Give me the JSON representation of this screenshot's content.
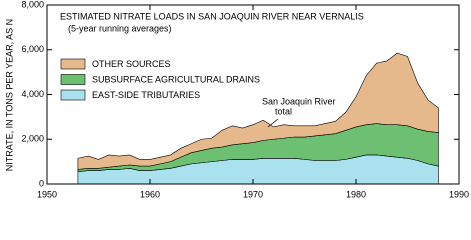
{
  "chart_data": {
    "type": "stacked_area",
    "title": "ESTIMATED NITRATE LOADS IN SAN JOAQUIN RIVER NEAR VERNALIS",
    "subtitle": "(5-year running averages)",
    "y_label": "NITRATE, IN TONS PER YEAR, AS N",
    "annotation": [
      "San Joaquin River",
      "total"
    ],
    "x": [
      1953,
      1954,
      1955,
      1956,
      1957,
      1958,
      1959,
      1960,
      1961,
      1962,
      1963,
      1964,
      1965,
      1966,
      1967,
      1968,
      1969,
      1970,
      1971,
      1972,
      1973,
      1974,
      1975,
      1976,
      1977,
      1978,
      1979,
      1980,
      1981,
      1982,
      1983,
      1984,
      1985,
      1986,
      1987,
      1988
    ],
    "series": [
      {
        "name": "EAST-SIDE TRIBUTARIES",
        "color": "#a9e2ee",
        "values": [
          550,
          600,
          600,
          650,
          650,
          700,
          600,
          600,
          650,
          700,
          800,
          900,
          950,
          1000,
          1050,
          1100,
          1100,
          1100,
          1150,
          1150,
          1150,
          1150,
          1100,
          1050,
          1050,
          1050,
          1100,
          1200,
          1300,
          1300,
          1250,
          1200,
          1150,
          1050,
          900,
          800
        ]
      },
      {
        "name": "SUBSURFACE AGRICULTURAL DRAINS",
        "color": "#6dbf72",
        "values": [
          100,
          100,
          100,
          100,
          150,
          150,
          200,
          200,
          250,
          300,
          400,
          500,
          550,
          600,
          600,
          650,
          700,
          750,
          800,
          850,
          900,
          950,
          1000,
          1100,
          1150,
          1200,
          1300,
          1350,
          1350,
          1400,
          1400,
          1450,
          1450,
          1400,
          1450,
          1500
        ]
      },
      {
        "name": "OTHER SOURCES",
        "color": "#e5b98b",
        "values": [
          500,
          550,
          400,
          550,
          450,
          450,
          300,
          300,
          300,
          300,
          400,
          400,
          500,
          450,
          750,
          850,
          700,
          800,
          900,
          550,
          600,
          500,
          500,
          450,
          500,
          550,
          800,
          1350,
          2200,
          2700,
          2850,
          3200,
          3100,
          2050,
          1400,
          1100
        ]
      }
    ],
    "xlim": [
      1950,
      1990
    ],
    "xticks": [
      1950,
      1960,
      1970,
      1980,
      1990
    ],
    "ylim": [
      0,
      8000
    ],
    "yticks": [
      0,
      {
        "value": 2000,
        "label": "2,000"
      },
      {
        "value": 4000,
        "label": "4,000"
      },
      {
        "value": 6000,
        "label": "6,000"
      },
      {
        "value": 8000,
        "label": "8,000"
      }
    ]
  }
}
